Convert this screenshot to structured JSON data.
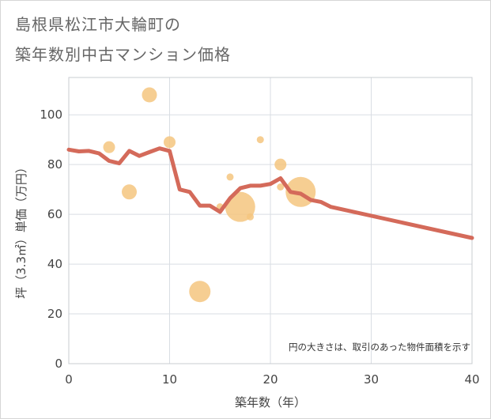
{
  "title_line1": "島根県松江市大輪町の",
  "title_line2": "築年数別中古マンション価格",
  "chart_data": {
    "type": "scatter",
    "xlabel": "築年数（年）",
    "ylabel": "坪（3.3㎡）単価（万円）",
    "xlim": [
      0,
      40
    ],
    "ylim": [
      0,
      115
    ],
    "xticks": [
      0,
      10,
      20,
      30,
      40
    ],
    "yticks": [
      0,
      20,
      40,
      60,
      80,
      100
    ],
    "grid": true,
    "note": "円の大きさは、取引のあった物件面積を示す",
    "colors": {
      "bubble": "#f5c67f",
      "line": "#d46a5a",
      "grid": "#d9dde3",
      "plot_border": "#c8ccd2"
    },
    "bubbles": [
      {
        "x": 4,
        "y": 87,
        "size": "small"
      },
      {
        "x": 6,
        "y": 69,
        "size": "medium"
      },
      {
        "x": 8,
        "y": 108,
        "size": "medium"
      },
      {
        "x": 10,
        "y": 89,
        "size": "small"
      },
      {
        "x": 13,
        "y": 29,
        "size": "large"
      },
      {
        "x": 15,
        "y": 63,
        "size": "tiny"
      },
      {
        "x": 16,
        "y": 75,
        "size": "tiny"
      },
      {
        "x": 17,
        "y": 63,
        "size": "xlarge"
      },
      {
        "x": 18,
        "y": 59,
        "size": "tiny"
      },
      {
        "x": 19,
        "y": 90,
        "size": "tiny"
      },
      {
        "x": 21,
        "y": 80,
        "size": "small"
      },
      {
        "x": 21,
        "y": 71,
        "size": "tiny"
      },
      {
        "x": 23,
        "y": 69,
        "size": "xlarge"
      }
    ],
    "trend": [
      {
        "x": 0,
        "y": 86
      },
      {
        "x": 1,
        "y": 85.3
      },
      {
        "x": 2,
        "y": 85.5
      },
      {
        "x": 3,
        "y": 84.5
      },
      {
        "x": 4,
        "y": 81.5
      },
      {
        "x": 5,
        "y": 80.5
      },
      {
        "x": 6,
        "y": 85.5
      },
      {
        "x": 7,
        "y": 83.5
      },
      {
        "x": 8,
        "y": 85
      },
      {
        "x": 9,
        "y": 86.5
      },
      {
        "x": 10,
        "y": 85.5
      },
      {
        "x": 11,
        "y": 70
      },
      {
        "x": 12,
        "y": 69
      },
      {
        "x": 13,
        "y": 63.5
      },
      {
        "x": 14,
        "y": 63.5
      },
      {
        "x": 15,
        "y": 61
      },
      {
        "x": 16,
        "y": 66.5
      },
      {
        "x": 17,
        "y": 70.5
      },
      {
        "x": 18,
        "y": 71.5
      },
      {
        "x": 19,
        "y": 71.5
      },
      {
        "x": 20,
        "y": 72.2
      },
      {
        "x": 21,
        "y": 74.5
      },
      {
        "x": 22,
        "y": 69
      },
      {
        "x": 23,
        "y": 68.3
      },
      {
        "x": 24,
        "y": 65.8
      },
      {
        "x": 25,
        "y": 65
      },
      {
        "x": 26,
        "y": 63
      },
      {
        "x": 40,
        "y": 50.5
      }
    ]
  }
}
